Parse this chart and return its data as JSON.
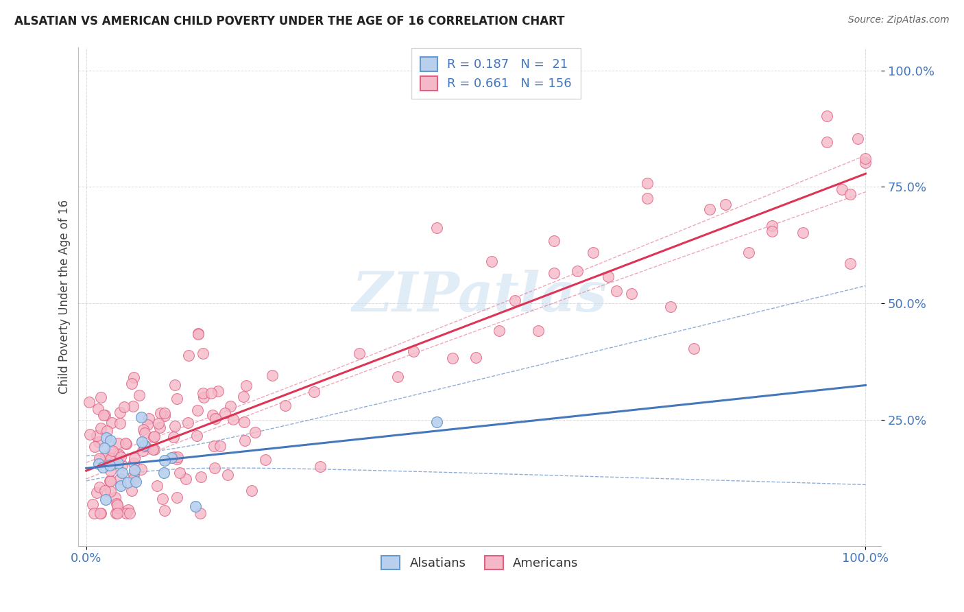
{
  "title": "ALSATIAN VS AMERICAN CHILD POVERTY UNDER THE AGE OF 16 CORRELATION CHART",
  "source": "Source: ZipAtlas.com",
  "ylabel": "Child Poverty Under the Age of 16",
  "xlabel": "",
  "xlim": [
    -0.01,
    1.02
  ],
  "ylim": [
    -0.02,
    1.05
  ],
  "xtick_labels": [
    "0.0%",
    "100.0%"
  ],
  "ytick_labels": [
    "25.0%",
    "50.0%",
    "75.0%",
    "100.0%"
  ],
  "ytick_positions": [
    0.25,
    0.5,
    0.75,
    1.0
  ],
  "background_color": "#ffffff",
  "grid_color": "#cccccc",
  "alsatian_fill_color": "#b8d0ee",
  "american_fill_color": "#f5b8c8",
  "alsatian_edge_color": "#6699cc",
  "american_edge_color": "#e06080",
  "alsatian_line_color": "#4477bb",
  "american_line_color": "#dd3355",
  "alsatian_R": 0.187,
  "alsatian_N": 21,
  "american_R": 0.661,
  "american_N": 156,
  "legend_label_alsatian": "Alsatians",
  "legend_label_american": "Americans",
  "watermark_text": "ZIPatlas",
  "watermark_color": "#c8ddf0",
  "title_color": "#222222",
  "source_color": "#666666",
  "tick_color": "#4477bb",
  "ylabel_color": "#444444"
}
